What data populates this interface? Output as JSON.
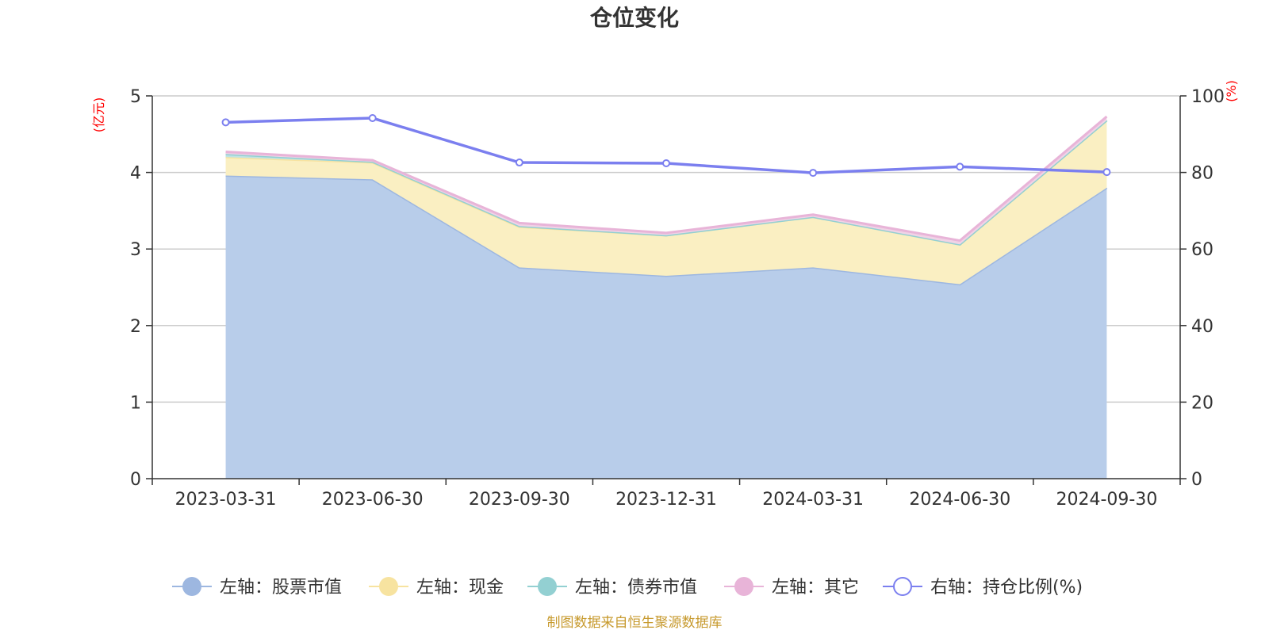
{
  "chart_data": {
    "type": "area",
    "title": "仓位变化",
    "categories": [
      "2023-03-31",
      "2023-06-30",
      "2023-09-30",
      "2023-12-31",
      "2024-03-31",
      "2024-06-30",
      "2024-09-30"
    ],
    "left_axis": {
      "unit": "(亿元)",
      "ylim": [
        0,
        5
      ],
      "ticks": [
        0,
        1,
        2,
        3,
        4,
        5
      ]
    },
    "right_axis": {
      "unit": "(%)",
      "ylim": [
        0,
        100
      ],
      "ticks": [
        0,
        20,
        40,
        60,
        80,
        100
      ]
    },
    "grid": true,
    "legend_position": "bottom",
    "series": [
      {
        "name": "左轴：股票市值",
        "axis": "left",
        "stacked": true,
        "color": "#9db7e0",
        "fill": "#b8cdea",
        "values": [
          3.96,
          3.91,
          2.76,
          2.65,
          2.76,
          2.54,
          3.8
        ]
      },
      {
        "name": "左轴：现金",
        "axis": "left",
        "stacked": true,
        "color": "#f7e3a0",
        "fill": "#faefc2",
        "values": [
          0.24,
          0.22,
          0.53,
          0.53,
          0.66,
          0.52,
          0.88
        ]
      },
      {
        "name": "左轴：债券市值",
        "axis": "left",
        "stacked": true,
        "color": "#93d0d2",
        "fill": "#bfe3e4",
        "values": [
          0.04,
          0.01,
          0.01,
          0.0,
          0.0,
          0.0,
          0.0
        ]
      },
      {
        "name": "左轴：其它",
        "axis": "left",
        "stacked": true,
        "color": "#e8b4d8",
        "fill": "#f0d3e6",
        "values": [
          0.03,
          0.02,
          0.04,
          0.03,
          0.03,
          0.05,
          0.05
        ]
      },
      {
        "name": "右轴：持仓比例(%)",
        "axis": "right",
        "type": "line",
        "color": "#7b7fef",
        "values": [
          93.1,
          94.2,
          82.6,
          82.4,
          79.9,
          81.5,
          80.1
        ]
      }
    ],
    "source": "制图数据来自恒生聚源数据库"
  }
}
